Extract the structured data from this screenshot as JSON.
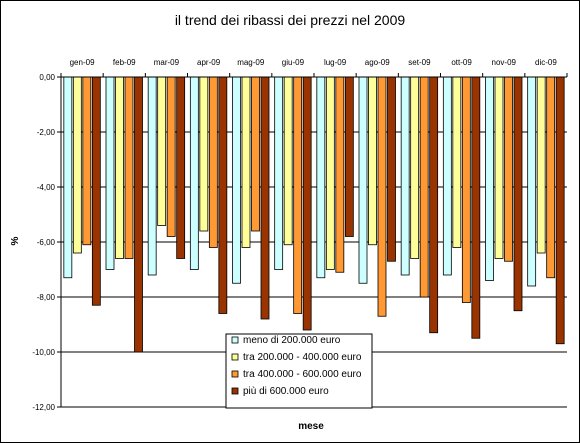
{
  "chart_data": {
    "type": "bar",
    "title": "il trend dei ribassi dei prezzi nel 2009",
    "xlabel": "mese",
    "ylabel": "%",
    "categories": [
      "gen-09",
      "feb-09",
      "mar-09",
      "apr-09",
      "mag-09",
      "giu-09",
      "lug-09",
      "ago-09",
      "set-09",
      "ott-09",
      "nov-09",
      "dic-09"
    ],
    "series": [
      {
        "name": "meno di 200.000 euro",
        "color": "#ccffff",
        "values": [
          -7.3,
          -7.0,
          -7.2,
          -7.0,
          -7.5,
          -7.0,
          -7.3,
          -7.5,
          -7.2,
          -7.2,
          -7.4,
          -7.6
        ]
      },
      {
        "name": "tra 200.000 - 400.000 euro",
        "color": "#ffff99",
        "values": [
          -6.4,
          -6.6,
          -5.4,
          -5.6,
          -6.2,
          -6.1,
          -7.0,
          -6.1,
          -6.6,
          -6.2,
          -6.6,
          -6.4
        ]
      },
      {
        "name": "tra 400.000 - 600.000 euro",
        "color": "#ff9933",
        "values": [
          -6.1,
          -6.6,
          -5.8,
          -6.2,
          -5.6,
          -8.6,
          -7.1,
          -8.7,
          -8.0,
          -8.2,
          -6.7,
          -7.3
        ]
      },
      {
        "name": "più di 600.000 euro",
        "color": "#993300",
        "values": [
          -8.3,
          -10.0,
          -6.6,
          -8.6,
          -8.8,
          -9.2,
          -5.8,
          -6.7,
          -9.3,
          -9.5,
          -8.5,
          -9.7
        ]
      }
    ],
    "ylim": [
      -12,
      0
    ],
    "yticks": [
      "0,00",
      "-2,00",
      "-4,00",
      "-6,00",
      "-8,00",
      "-10,00",
      "-12,00"
    ],
    "grid": true,
    "plot_background": "#ffffff",
    "legend_placement": "bottom-center, inside plot"
  }
}
